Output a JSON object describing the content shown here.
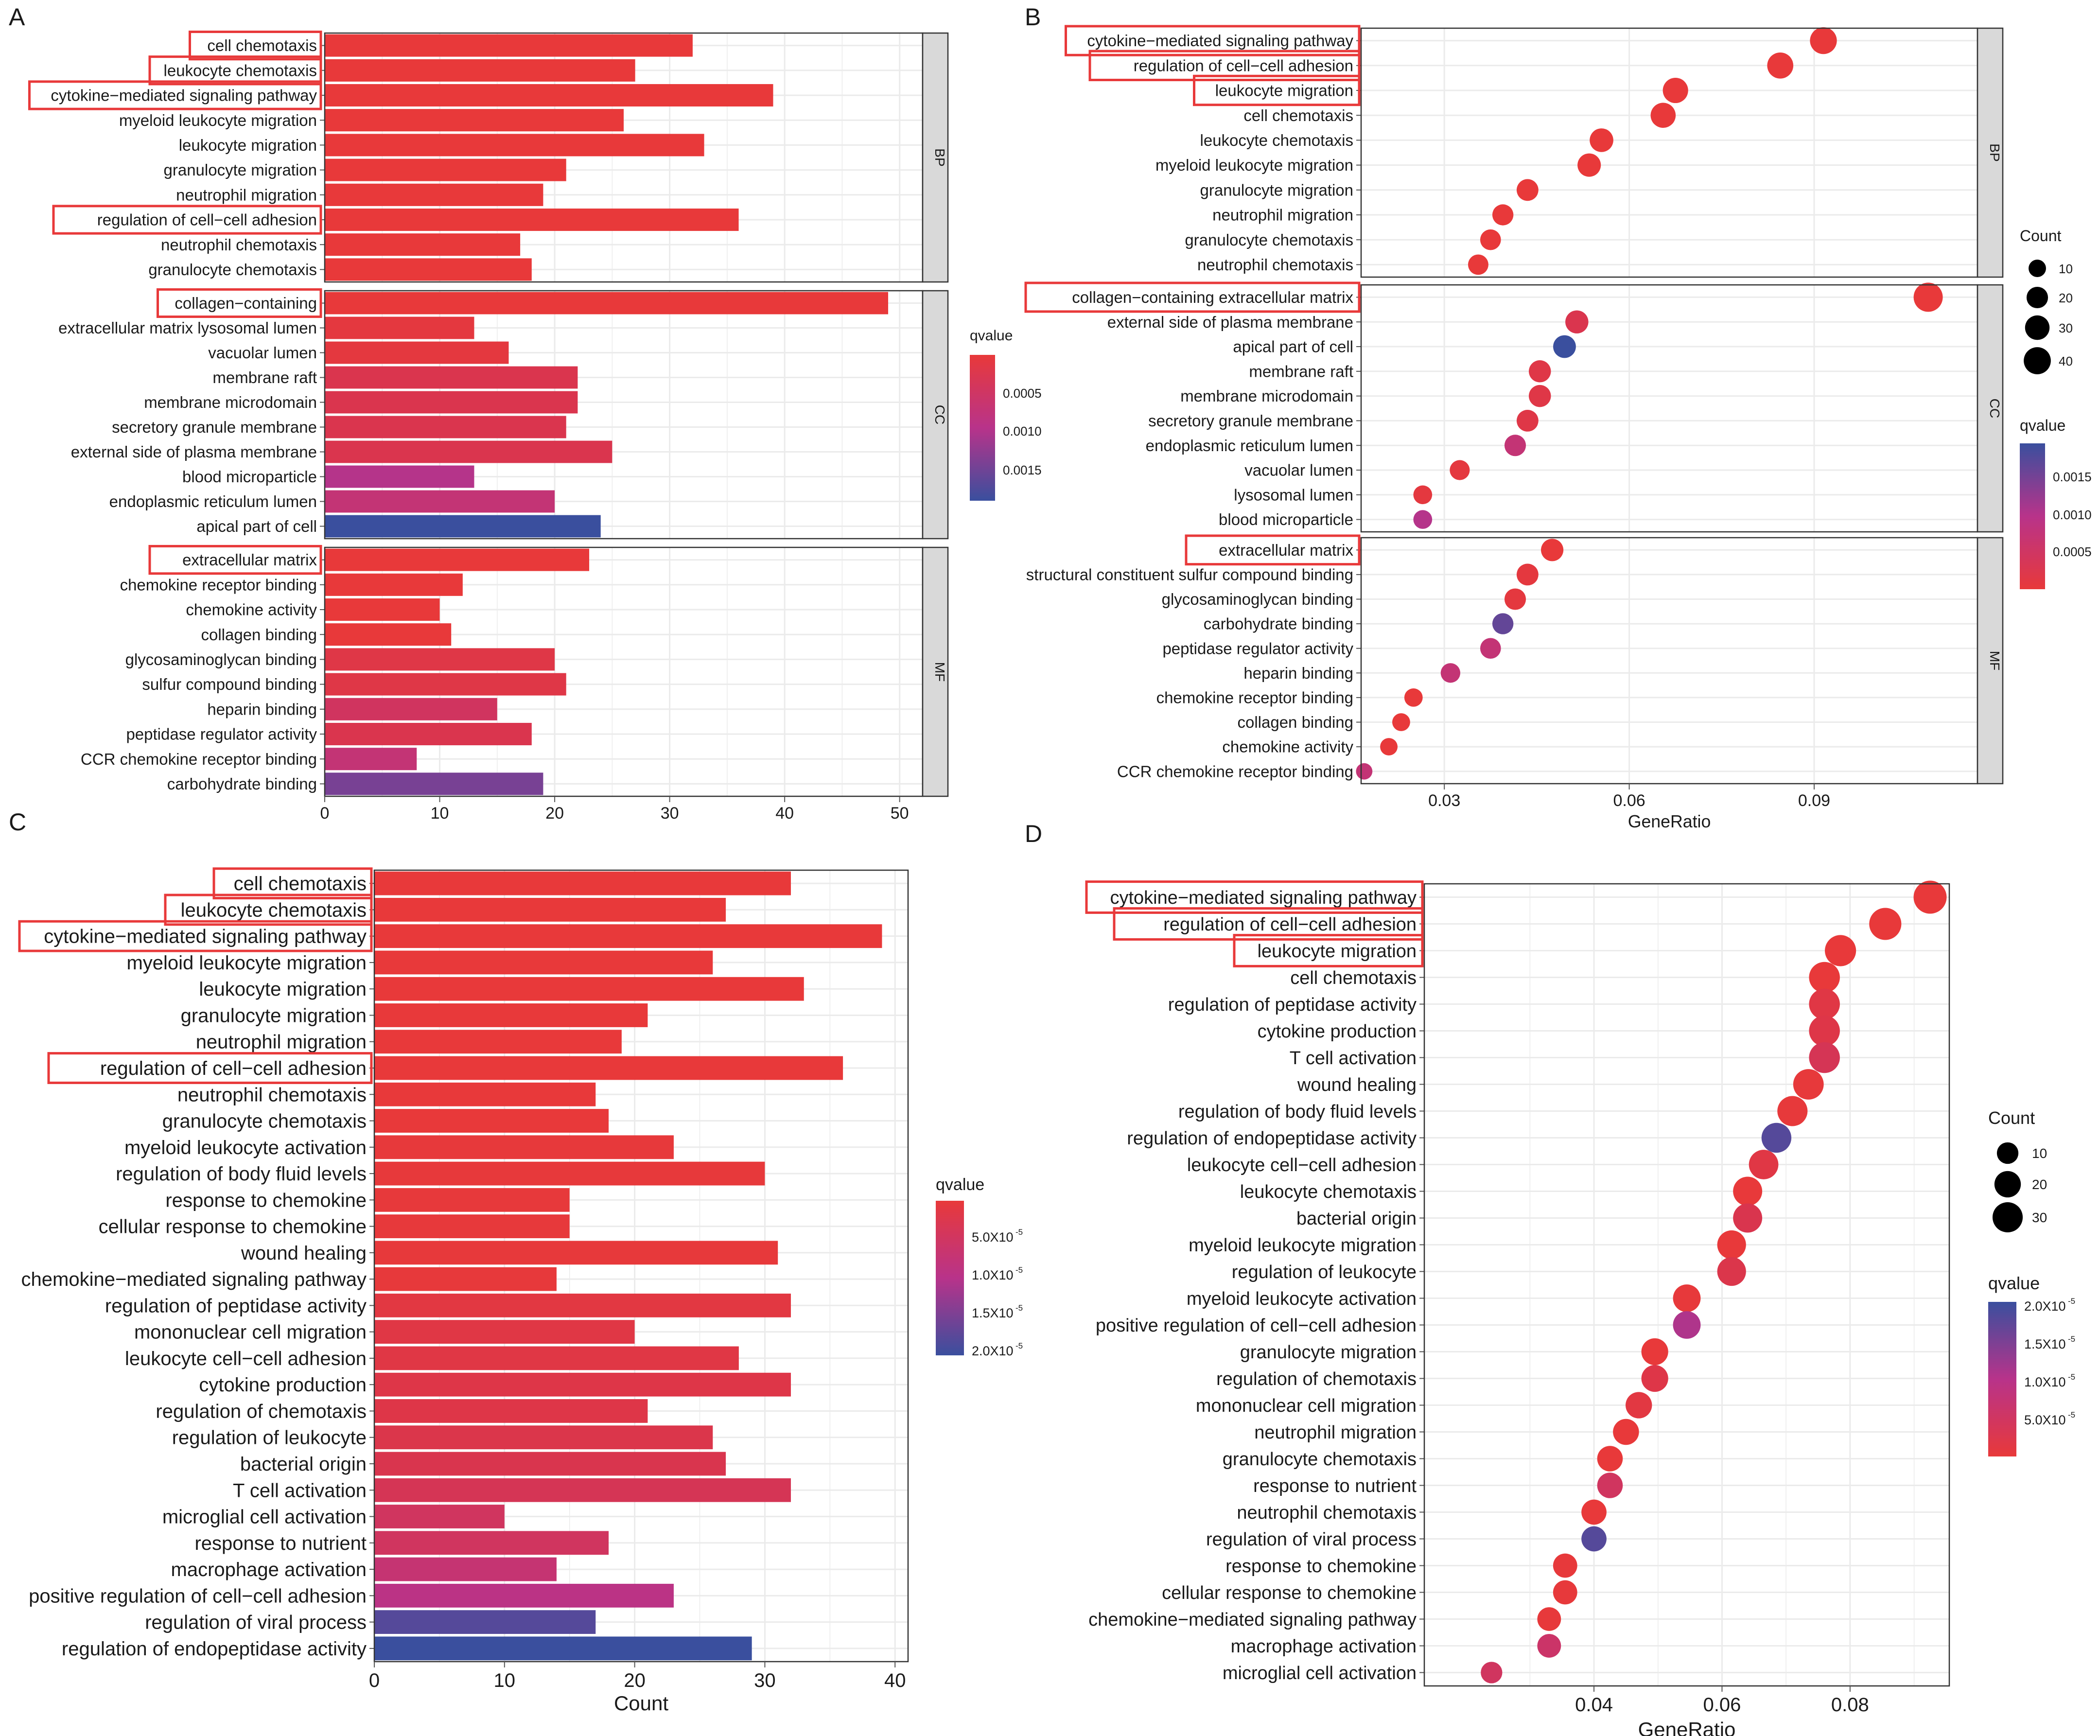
{
  "chart_data": [
    {
      "panel_label": "A",
      "type": "bar",
      "orientation": "horizontal",
      "xlabel": "",
      "xlim": [
        0,
        52
      ],
      "xticks": [
        0,
        10,
        20,
        30,
        40,
        50
      ],
      "legend": {
        "title": "qvalue",
        "ticks": [
          "0.0005",
          "0.0010",
          "0.0015"
        ],
        "placement": "right"
      },
      "facets": [
        {
          "strip": "BP",
          "categories": [
            {
              "label": "cell chemotaxis",
              "value": 32,
              "q": 5e-05,
              "boxed": true
            },
            {
              "label": "leukocyte chemotaxis",
              "value": 27,
              "q": 5e-05,
              "boxed": true
            },
            {
              "label": "cytokine−mediated signaling pathway",
              "value": 39,
              "q": 5e-05,
              "boxed": true
            },
            {
              "label": "myeloid leukocyte migration",
              "value": 26,
              "q": 5e-05
            },
            {
              "label": "leukocyte migration",
              "value": 33,
              "q": 5e-05
            },
            {
              "label": "granulocyte migration",
              "value": 21,
              "q": 5e-05
            },
            {
              "label": "neutrophil migration",
              "value": 19,
              "q": 5e-05
            },
            {
              "label": "regulation of cell−cell adhesion",
              "value": 36,
              "q": 5e-05,
              "boxed": true
            },
            {
              "label": "neutrophil chemotaxis",
              "value": 17,
              "q": 5e-05
            },
            {
              "label": "granulocyte chemotaxis",
              "value": 18,
              "q": 5e-05
            }
          ]
        },
        {
          "strip": "CC",
          "categories": [
            {
              "label": "collagen−containing",
              "value": 49,
              "q": 5e-05,
              "boxed": true
            },
            {
              "label": "extracellular matrix lysosomal lumen",
              "value": 13,
              "q": 0.0002
            },
            {
              "label": "vacuolar lumen",
              "value": 16,
              "q": 0.0002
            },
            {
              "label": "membrane raft",
              "value": 22,
              "q": 0.0006
            },
            {
              "label": "membrane microdomain",
              "value": 22,
              "q": 0.0006
            },
            {
              "label": "secretory granule membrane",
              "value": 21,
              "q": 0.0006
            },
            {
              "label": "external side of plasma membrane",
              "value": 25,
              "q": 0.0006
            },
            {
              "label": "blood microparticle",
              "value": 13,
              "q": 0.0012
            },
            {
              "label": "endoplasmic reticulum lumen",
              "value": 20,
              "q": 0.001
            },
            {
              "label": "apical part of cell",
              "value": 24,
              "q": 0.0018
            }
          ]
        },
        {
          "strip": "MF",
          "categories": [
            {
              "label": "extracellular matrix",
              "value": 23,
              "q": 5e-05,
              "boxed": true
            },
            {
              "label": "chemokine receptor binding",
              "value": 12,
              "q": 5e-05
            },
            {
              "label": "chemokine activity",
              "value": 10,
              "q": 5e-05
            },
            {
              "label": "collagen binding",
              "value": 11,
              "q": 5e-05
            },
            {
              "label": "glycosaminoglycan binding",
              "value": 20,
              "q": 0.0004
            },
            {
              "label": "sulfur compound binding",
              "value": 21,
              "q": 0.0004
            },
            {
              "label": "heparin binding",
              "value": 15,
              "q": 0.0008
            },
            {
              "label": "peptidase regulator activity",
              "value": 18,
              "q": 0.0006
            },
            {
              "label": "CCR chemokine receptor binding",
              "value": 8,
              "q": 0.001
            },
            {
              "label": "carbohydrate binding",
              "value": 19,
              "q": 0.0015
            }
          ]
        }
      ]
    },
    {
      "panel_label": "B",
      "type": "scatter",
      "xlabel": "GeneRatio",
      "xlim": [
        0.0165,
        0.1165
      ],
      "xticks": [
        0.03,
        0.06,
        0.09
      ],
      "xtick_labels": [
        "0.03",
        "0.06",
        "0.09"
      ],
      "legend": {
        "size_title": "Count",
        "size_ticks": [
          "10",
          "20",
          "30",
          "40"
        ],
        "size_values": [
          10,
          20,
          30,
          40
        ],
        "color_title": "qvalue",
        "color_ticks": [
          "0.0015",
          "0.0010",
          "0.0005"
        ],
        "placement": "right"
      },
      "facets": [
        {
          "strip": "BP",
          "points": [
            {
              "label": "cytokine−mediated signaling pathway",
              "x": 0.0915,
              "count": 39,
              "q": 5e-05,
              "boxed": true
            },
            {
              "label": "regulation of cell−cell adhesion",
              "x": 0.0845,
              "count": 36,
              "q": 5e-05,
              "boxed": true
            },
            {
              "label": "leukocyte migration",
              "x": 0.0675,
              "count": 33,
              "q": 5e-05,
              "boxed": true
            },
            {
              "label": "cell chemotaxis",
              "x": 0.0655,
              "count": 32,
              "q": 5e-05
            },
            {
              "label": "leukocyte chemotaxis",
              "x": 0.0555,
              "count": 27,
              "q": 5e-05
            },
            {
              "label": "myeloid leukocyte migration",
              "x": 0.0535,
              "count": 26,
              "q": 5e-05
            },
            {
              "label": "granulocyte migration",
              "x": 0.0435,
              "count": 21,
              "q": 5e-05
            },
            {
              "label": "neutrophil migration",
              "x": 0.0395,
              "count": 19,
              "q": 5e-05
            },
            {
              "label": "granulocyte chemotaxis",
              "x": 0.0375,
              "count": 18,
              "q": 5e-05
            },
            {
              "label": "neutrophil chemotaxis",
              "x": 0.0355,
              "count": 17,
              "q": 5e-05
            }
          ]
        },
        {
          "strip": "CC",
          "points": [
            {
              "label": "collagen−containing extracellular matrix",
              "x": 0.1085,
              "count": 49,
              "q": 5e-05,
              "boxed": true
            },
            {
              "label": "external side of plasma membrane",
              "x": 0.0515,
              "count": 25,
              "q": 0.0006
            },
            {
              "label": "apical part of cell",
              "x": 0.0495,
              "count": 24,
              "q": 0.0018
            },
            {
              "label": "membrane raft",
              "x": 0.0455,
              "count": 22,
              "q": 0.0004
            },
            {
              "label": "membrane microdomain",
              "x": 0.0455,
              "count": 22,
              "q": 0.0004
            },
            {
              "label": "secretory granule membrane",
              "x": 0.0435,
              "count": 21,
              "q": 0.0004
            },
            {
              "label": "endoplasmic reticulum lumen",
              "x": 0.0415,
              "count": 20,
              "q": 0.001
            },
            {
              "label": "vacuolar lumen",
              "x": 0.0325,
              "count": 16,
              "q": 0.0002
            },
            {
              "label": "lysosomal lumen",
              "x": 0.0265,
              "count": 13,
              "q": 0.0002
            },
            {
              "label": "blood microparticle",
              "x": 0.0265,
              "count": 13,
              "q": 0.0012
            }
          ]
        },
        {
          "strip": "MF",
          "points": [
            {
              "label": "extracellular matrix",
              "x": 0.0475,
              "count": 23,
              "q": 5e-05,
              "boxed": true
            },
            {
              "label": "structural constituent sulfur compound binding",
              "x": 0.0435,
              "count": 21,
              "q": 0.0002
            },
            {
              "label": "glycosaminoglycan binding",
              "x": 0.0415,
              "count": 20,
              "q": 0.0002
            },
            {
              "label": "carbohydrate binding",
              "x": 0.0395,
              "count": 19,
              "q": 0.0016
            },
            {
              "label": "peptidase regulator activity",
              "x": 0.0375,
              "count": 18,
              "q": 0.001
            },
            {
              "label": "heparin binding",
              "x": 0.031,
              "count": 15,
              "q": 0.001
            },
            {
              "label": "chemokine receptor binding",
              "x": 0.025,
              "count": 12,
              "q": 5e-05
            },
            {
              "label": "collagen binding",
              "x": 0.023,
              "count": 11,
              "q": 5e-05
            },
            {
              "label": "chemokine activity",
              "x": 0.021,
              "count": 10,
              "q": 5e-05
            },
            {
              "label": "CCR chemokine receptor binding",
              "x": 0.017,
              "count": 8,
              "q": 0.001
            }
          ]
        }
      ]
    },
    {
      "panel_label": "C",
      "type": "bar",
      "orientation": "horizontal",
      "xlabel": "Count",
      "xlim": [
        0,
        41
      ],
      "xticks": [
        0,
        10,
        20,
        30,
        40
      ],
      "legend": {
        "title": "qvalue",
        "tick_mantissas": [
          "5.0X10",
          "1.0X10",
          "1.5X10",
          "2.0X10"
        ],
        "tick_exponent": "-5",
        "placement": "right"
      },
      "categories": [
        {
          "label": "cell chemotaxis",
          "value": 32,
          "q": 5e-07,
          "boxed": true
        },
        {
          "label": "leukocyte chemotaxis",
          "value": 27,
          "q": 5e-07,
          "boxed": true
        },
        {
          "label": "cytokine−mediated signaling pathway",
          "value": 39,
          "q": 5e-07,
          "boxed": true
        },
        {
          "label": "myeloid leukocyte migration",
          "value": 26,
          "q": 5e-07
        },
        {
          "label": "leukocyte migration",
          "value": 33,
          "q": 5e-07
        },
        {
          "label": "granulocyte migration",
          "value": 21,
          "q": 5e-07
        },
        {
          "label": "neutrophil migration",
          "value": 19,
          "q": 5e-07
        },
        {
          "label": "regulation of cell−cell adhesion",
          "value": 36,
          "q": 5e-07,
          "boxed": true
        },
        {
          "label": "neutrophil chemotaxis",
          "value": 17,
          "q": 5e-07
        },
        {
          "label": "granulocyte chemotaxis",
          "value": 18,
          "q": 5e-07
        },
        {
          "label": "myeloid leukocyte activation",
          "value": 23,
          "q": 8e-07
        },
        {
          "label": "regulation of body fluid levels",
          "value": 30,
          "q": 8e-07
        },
        {
          "label": "response to chemokine",
          "value": 15,
          "q": 8e-07
        },
        {
          "label": "cellular response to chemokine",
          "value": 15,
          "q": 8e-07
        },
        {
          "label": "wound healing",
          "value": 31,
          "q": 8e-07
        },
        {
          "label": "chemokine−mediated signaling pathway",
          "value": 14,
          "q": 8e-07
        },
        {
          "label": "regulation of peptidase activity",
          "value": 32,
          "q": 3e-06
        },
        {
          "label": "mononuclear cell migration",
          "value": 20,
          "q": 4e-06
        },
        {
          "label": "leukocyte cell−cell adhesion",
          "value": 28,
          "q": 4e-06
        },
        {
          "label": "cytokine production",
          "value": 32,
          "q": 5e-06
        },
        {
          "label": "regulation of chemotaxis",
          "value": 21,
          "q": 5e-06
        },
        {
          "label": "regulation of leukocyte",
          "value": 26,
          "q": 6e-06
        },
        {
          "label": "bacterial origin",
          "value": 27,
          "q": 7e-06
        },
        {
          "label": "T cell activation",
          "value": 32,
          "q": 8e-06
        },
        {
          "label": "microglial cell activation",
          "value": 10,
          "q": 9e-06
        },
        {
          "label": "response to nutrient",
          "value": 18,
          "q": 9e-06
        },
        {
          "label": "macrophage activation",
          "value": 14,
          "q": 1.1e-05
        },
        {
          "label": "positive regulation of  cell−cell adhesion",
          "value": 23,
          "q": 1.3e-05
        },
        {
          "label": "regulation of viral process",
          "value": 17,
          "q": 1.9e-05
        },
        {
          "label": "regulation of endopeptidase activity",
          "value": 29,
          "q": 2.05e-05
        }
      ]
    },
    {
      "panel_label": "D",
      "type": "scatter",
      "xlabel": "GeneRatio",
      "xlim": [
        0.0135,
        0.0955
      ],
      "xticks": [
        0.04,
        0.06,
        0.08
      ],
      "xtick_labels": [
        "0.04",
        "0.06",
        "0.08"
      ],
      "legend": {
        "size_title": "Count",
        "size_ticks": [
          "10",
          "20",
          "30"
        ],
        "size_values": [
          10,
          20,
          30
        ],
        "color_title": "qvalue",
        "color_tick_mantissas": [
          "2.0X10",
          "1.5X10",
          "1.0X10",
          "5.0X10"
        ],
        "color_tick_exponent": "-5",
        "placement": "right"
      },
      "points": [
        {
          "label": "cytokine−mediated signaling pathway",
          "x": 0.0925,
          "count": 39,
          "q": 5e-07,
          "boxed": true
        },
        {
          "label": "regulation of cell−cell adhesion",
          "x": 0.0855,
          "count": 36,
          "q": 5e-07,
          "boxed": true
        },
        {
          "label": "leukocyte migration",
          "x": 0.0785,
          "count": 33,
          "q": 5e-07,
          "boxed": true
        },
        {
          "label": "cell chemotaxis",
          "x": 0.076,
          "count": 32,
          "q": 5e-07
        },
        {
          "label": "regulation of peptidase activity",
          "x": 0.076,
          "count": 32,
          "q": 4e-06
        },
        {
          "label": "cytokine production",
          "x": 0.076,
          "count": 32,
          "q": 5e-06
        },
        {
          "label": "T cell activation",
          "x": 0.076,
          "count": 32,
          "q": 8e-06
        },
        {
          "label": "wound healing",
          "x": 0.0735,
          "count": 31,
          "q": 8e-07
        },
        {
          "label": "regulation of body fluid levels",
          "x": 0.071,
          "count": 30,
          "q": 8e-07
        },
        {
          "label": "regulation of endopeptidase activity",
          "x": 0.0685,
          "count": 29,
          "q": 1.9e-05
        },
        {
          "label": "leukocyte cell−cell adhesion",
          "x": 0.0665,
          "count": 28,
          "q": 4e-06
        },
        {
          "label": "leukocyte chemotaxis",
          "x": 0.064,
          "count": 27,
          "q": 5e-07
        },
        {
          "label": "bacterial origin",
          "x": 0.064,
          "count": 27,
          "q": 7e-06
        },
        {
          "label": "myeloid leukocyte migration",
          "x": 0.0615,
          "count": 26,
          "q": 5e-07
        },
        {
          "label": "regulation of leukocyte",
          "x": 0.0615,
          "count": 26,
          "q": 6e-06
        },
        {
          "label": "myeloid leukocyte activation",
          "x": 0.0545,
          "count": 23,
          "q": 8e-07
        },
        {
          "label": "positive regulation of cell−cell adhesion",
          "x": 0.0545,
          "count": 23,
          "q": 1.4e-05
        },
        {
          "label": "granulocyte migration",
          "x": 0.0495,
          "count": 21,
          "q": 5e-07
        },
        {
          "label": "regulation of chemotaxis",
          "x": 0.0495,
          "count": 21,
          "q": 5e-06
        },
        {
          "label": "mononuclear cell migration",
          "x": 0.047,
          "count": 20,
          "q": 3e-06
        },
        {
          "label": "neutrophil migration",
          "x": 0.045,
          "count": 19,
          "q": 5e-07
        },
        {
          "label": "granulocyte chemotaxis",
          "x": 0.0425,
          "count": 18,
          "q": 5e-07
        },
        {
          "label": "response to nutrient",
          "x": 0.0425,
          "count": 18,
          "q": 9e-06
        },
        {
          "label": "neutrophil chemotaxis",
          "x": 0.04,
          "count": 17,
          "q": 5e-07
        },
        {
          "label": "regulation of viral process",
          "x": 0.04,
          "count": 17,
          "q": 1.9e-05
        },
        {
          "label": "response to chemokine",
          "x": 0.0355,
          "count": 15,
          "q": 8e-07
        },
        {
          "label": "cellular response to chemokine",
          "x": 0.0355,
          "count": 15,
          "q": 8e-07
        },
        {
          "label": "chemokine−mediated signaling pathway",
          "x": 0.033,
          "count": 14,
          "q": 8e-07
        },
        {
          "label": "macrophage activation",
          "x": 0.033,
          "count": 14,
          "q": 1e-05
        },
        {
          "label": "microglial cell activation",
          "x": 0.024,
          "count": 10,
          "q": 9e-06
        }
      ]
    }
  ]
}
